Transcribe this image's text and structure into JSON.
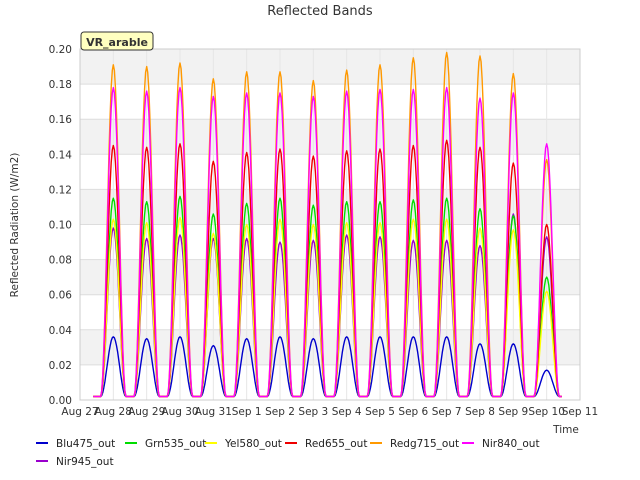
{
  "chart_data": {
    "type": "line",
    "title": "Reflected Bands",
    "badge": "VR_arable",
    "xlabel": "Time",
    "ylabel": "Reflected Radiation (W/m2)",
    "xlim": [
      0,
      15
    ],
    "ylim": [
      0,
      0.2
    ],
    "x_ticks": [
      0,
      1,
      2,
      3,
      4,
      5,
      6,
      7,
      8,
      9,
      10,
      11,
      12,
      13,
      14,
      15
    ],
    "x_tick_labels": [
      "Aug 27",
      "Aug 28",
      "Aug 29",
      "Aug 30",
      "Aug 31",
      "Sep 1",
      "Sep 2",
      "Sep 3",
      "Sep 4",
      "Sep 5",
      "Sep 6",
      "Sep 7",
      "Sep 8",
      "Sep 9",
      "Sep 10",
      "Sep 11"
    ],
    "y_ticks": [
      0,
      0.02,
      0.04,
      0.06,
      0.08,
      0.1,
      0.12,
      0.14,
      0.16,
      0.18,
      0.2
    ],
    "y_tick_labels": [
      "0.00",
      "0.02",
      "0.04",
      "0.06",
      "0.08",
      "0.10",
      "0.12",
      "0.14",
      "0.16",
      "0.18",
      "0.20"
    ],
    "grid": true,
    "legend_position": "bottom",
    "day_peak_x": [
      1.0,
      2.0,
      3.0,
      4.0,
      5.0,
      6.0,
      7.0,
      8.0,
      9.0,
      10.0,
      11.0,
      12.0,
      13.0,
      14.0
    ],
    "night_baseline": 0.002,
    "series": [
      {
        "name": "Blu475_out",
        "color": "#0000cc",
        "daily_peaks": [
          0.036,
          0.035,
          0.036,
          0.031,
          0.035,
          0.036,
          0.035,
          0.036,
          0.036,
          0.036,
          0.036,
          0.032,
          0.032,
          0.017
        ]
      },
      {
        "name": "Grn535_out",
        "color": "#00dd00",
        "daily_peaks": [
          0.115,
          0.113,
          0.116,
          0.106,
          0.112,
          0.115,
          0.111,
          0.113,
          0.113,
          0.114,
          0.115,
          0.109,
          0.105,
          0.07
        ]
      },
      {
        "name": "Yel580_out",
        "color": "#ffff00",
        "daily_peaks": [
          0.103,
          0.101,
          0.104,
          0.095,
          0.1,
          0.103,
          0.1,
          0.101,
          0.101,
          0.103,
          0.103,
          0.098,
          0.097,
          0.062
        ]
      },
      {
        "name": "Red655_out",
        "color": "#ee0000",
        "daily_peaks": [
          0.145,
          0.144,
          0.146,
          0.136,
          0.141,
          0.143,
          0.139,
          0.142,
          0.143,
          0.145,
          0.148,
          0.144,
          0.135,
          0.1
        ]
      },
      {
        "name": "Redg715_out",
        "color": "#ff9900",
        "daily_peaks": [
          0.191,
          0.19,
          0.192,
          0.183,
          0.187,
          0.187,
          0.182,
          0.188,
          0.191,
          0.195,
          0.198,
          0.196,
          0.186,
          0.137
        ]
      },
      {
        "name": "Nir840_out",
        "color": "#ff00ff",
        "daily_peaks": [
          0.178,
          0.176,
          0.178,
          0.173,
          0.175,
          0.175,
          0.173,
          0.176,
          0.177,
          0.177,
          0.178,
          0.172,
          0.175,
          0.146
        ]
      },
      {
        "name": "Nir945_out",
        "color": "#9900cc",
        "daily_peaks": [
          0.098,
          0.092,
          0.094,
          0.092,
          0.092,
          0.09,
          0.091,
          0.094,
          0.093,
          0.091,
          0.091,
          0.088,
          0.106,
          0.093
        ]
      }
    ]
  }
}
